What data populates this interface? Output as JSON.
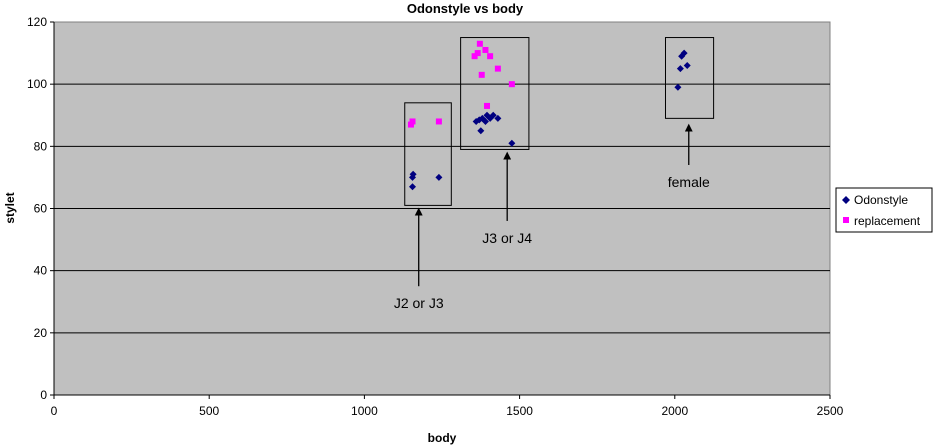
{
  "chart_data": {
    "type": "scatter",
    "title": "Odonstyle vs body",
    "xlabel": "body",
    "ylabel": "stylet",
    "xlim": [
      0,
      2500
    ],
    "ylim": [
      0,
      120
    ],
    "x_ticks": [
      0,
      500,
      1000,
      1500,
      2000,
      2500
    ],
    "y_ticks": [
      0,
      20,
      40,
      60,
      80,
      100,
      120
    ],
    "grid": "horizontal",
    "plot_background": "#c0c0c0",
    "legend_position": "right",
    "series": [
      {
        "name": "Odonstyle",
        "color": "#000080",
        "marker": "diamond",
        "points": [
          [
            1155,
            67
          ],
          [
            1155,
            70
          ],
          [
            1157,
            71
          ],
          [
            1240,
            70
          ],
          [
            1360,
            88
          ],
          [
            1370,
            88.5
          ],
          [
            1380,
            89
          ],
          [
            1375,
            85
          ],
          [
            1390,
            88
          ],
          [
            1395,
            90
          ],
          [
            1405,
            89
          ],
          [
            1415,
            90
          ],
          [
            1430,
            89
          ],
          [
            1475,
            81
          ],
          [
            2010,
            99
          ],
          [
            2018,
            105
          ],
          [
            2022,
            109
          ],
          [
            2030,
            110
          ],
          [
            2040,
            106
          ]
        ]
      },
      {
        "name": "replacement",
        "color": "#ff00ff",
        "marker": "square",
        "points": [
          [
            1150,
            87
          ],
          [
            1155,
            88
          ],
          [
            1240,
            88
          ],
          [
            1355,
            109
          ],
          [
            1365,
            110
          ],
          [
            1372,
            113
          ],
          [
            1378,
            103
          ],
          [
            1390,
            111
          ],
          [
            1395,
            93
          ],
          [
            1405,
            109
          ],
          [
            1430,
            105
          ],
          [
            1475,
            100
          ]
        ]
      }
    ],
    "annotations": [
      {
        "text": "J2 or J3",
        "box_x": [
          1130,
          1280
        ],
        "box_y": [
          61,
          94
        ],
        "arrow_x": 1175,
        "arrow_from_y": 35,
        "arrow_to_y": 59
      },
      {
        "text": "J3 or J4",
        "box_x": [
          1310,
          1530
        ],
        "box_y": [
          79,
          115
        ],
        "arrow_x": 1460,
        "arrow_from_y": 56,
        "arrow_to_y": 77
      },
      {
        "text": "female",
        "box_x": [
          1970,
          2125
        ],
        "box_y": [
          89,
          115
        ],
        "arrow_x": 2045,
        "arrow_from_y": 74,
        "arrow_to_y": 86
      }
    ]
  }
}
